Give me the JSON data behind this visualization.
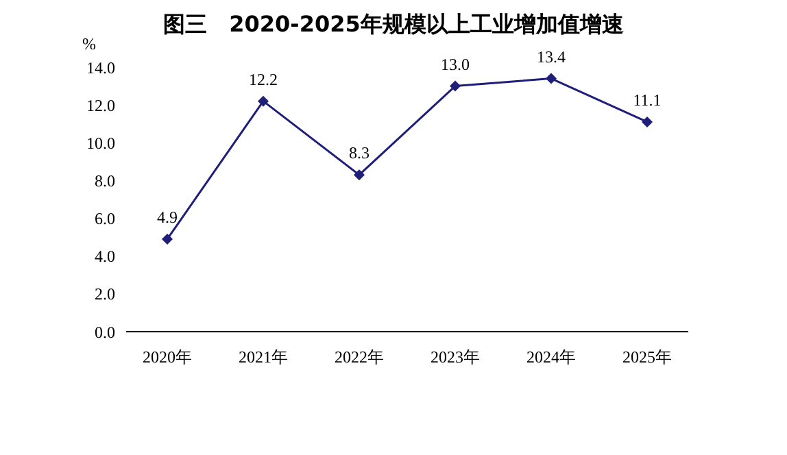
{
  "chart_data": {
    "type": "line",
    "title": "图三　2020-2025年规模以上工业增加值增速",
    "ylabel": "%",
    "categories": [
      "2020年",
      "2021年",
      "2022年",
      "2023年",
      "2024年",
      "2025年"
    ],
    "series": [
      {
        "color": "#1f1f7a",
        "values": [
          4.9,
          12.2,
          8.3,
          13.0,
          13.4,
          11.1
        ],
        "value_labels": [
          "4.9",
          "12.2",
          "8.3",
          "13.0",
          "13.4",
          "11.1"
        ]
      }
    ],
    "ylim": [
      0,
      14
    ],
    "yticks": [
      {
        "value": 0,
        "label": "0.0"
      },
      {
        "value": 2,
        "label": "2.0"
      },
      {
        "value": 4,
        "label": "4.0"
      },
      {
        "value": 6,
        "label": "6.0"
      },
      {
        "value": 8,
        "label": "8.0"
      },
      {
        "value": 10,
        "label": "10.0"
      },
      {
        "value": 12,
        "label": "12.0"
      },
      {
        "value": 14,
        "label": "14.0"
      }
    ],
    "grid": false,
    "legend": false,
    "marker": "diamond",
    "line_style": "solid"
  }
}
